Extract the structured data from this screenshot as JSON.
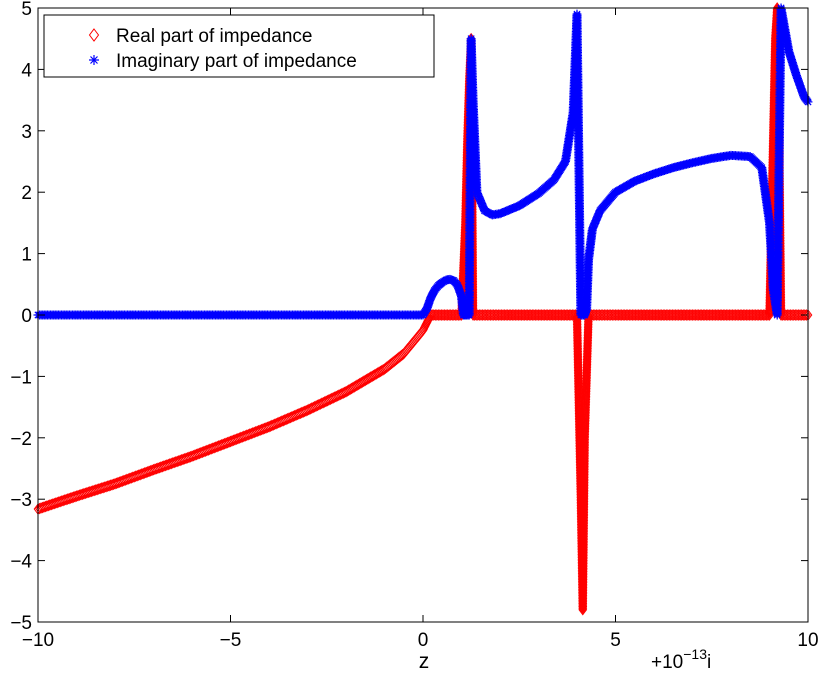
{
  "chart_data": {
    "type": "scatter",
    "xlabel": "z",
    "x_offset_label": {
      "prefix": "+10",
      "exponent": "−13",
      "suffix": "i"
    },
    "xlim": [
      -10,
      10
    ],
    "ylim": [
      -5,
      5
    ],
    "x_ticks": [
      -10,
      -5,
      0,
      5,
      10
    ],
    "x_tick_labels": [
      "−10",
      "−5",
      "0",
      "5",
      "10"
    ],
    "y_ticks": [
      -5,
      -4,
      -3,
      -2,
      -1,
      0,
      1,
      2,
      3,
      4,
      5
    ],
    "y_tick_labels": [
      "−5",
      "−4",
      "−3",
      "−2",
      "−1",
      "0",
      "1",
      "2",
      "3",
      "4",
      "5"
    ],
    "grid": false,
    "legend_position": "top-left",
    "series": [
      {
        "name": "Real part of impedance",
        "marker": "diamond",
        "color": "#ff0000",
        "x": [
          -10,
          -9,
          -8,
          -7,
          -6,
          -5,
          -4,
          -3,
          -2,
          -1,
          -0.5,
          0,
          0.2,
          0.4,
          0.8,
          1.0,
          1.1,
          1.15,
          1.2,
          1.25,
          1.3,
          2,
          3,
          4,
          4.05,
          4.1,
          4.15,
          4.2,
          4.3,
          5,
          6,
          7,
          8,
          9,
          9.05,
          9.1,
          9.15,
          9.2,
          9.25,
          9.3,
          10
        ],
        "y": [
          -3.16,
          -2.95,
          -2.75,
          -2.52,
          -2.3,
          -2.06,
          -1.82,
          -1.55,
          -1.25,
          -0.88,
          -0.63,
          -0.25,
          0,
          0,
          0,
          0,
          1.5,
          2.8,
          3.8,
          4.5,
          0,
          0,
          0,
          0,
          -1.5,
          -3.0,
          -4.8,
          -2.0,
          0,
          0,
          0,
          0,
          0,
          0,
          1.5,
          3.0,
          4.5,
          5.0,
          3.0,
          0,
          0
        ]
      },
      {
        "name": "Imaginary part of impedance",
        "marker": "asterisk",
        "color": "#0000ff",
        "x": [
          -10,
          -8,
          -6,
          -4,
          -2,
          0,
          0.1,
          0.2,
          0.3,
          0.4,
          0.5,
          0.6,
          0.7,
          0.8,
          0.9,
          1.0,
          1.05,
          1.1,
          1.2,
          1.25,
          1.3,
          1.4,
          1.6,
          1.8,
          2.0,
          2.5,
          3.0,
          3.4,
          3.7,
          3.9,
          4.0,
          4.1,
          4.2,
          4.25,
          4.3,
          4.4,
          4.6,
          5.0,
          5.5,
          6.0,
          6.5,
          7.0,
          7.5,
          8.0,
          8.5,
          8.8,
          9.0,
          9.1,
          9.2,
          9.3,
          9.5,
          9.7,
          9.9,
          10
        ],
        "y": [
          0,
          0,
          0,
          0,
          0,
          0,
          0.1,
          0.28,
          0.4,
          0.48,
          0.53,
          0.57,
          0.58,
          0.56,
          0.48,
          0.3,
          0,
          0,
          0,
          4.5,
          3.5,
          2.0,
          1.7,
          1.63,
          1.65,
          1.78,
          1.98,
          2.2,
          2.5,
          3.3,
          4.9,
          0,
          0,
          0.1,
          0.9,
          1.4,
          1.7,
          2.0,
          2.18,
          2.3,
          2.4,
          2.48,
          2.55,
          2.6,
          2.58,
          2.4,
          1.5,
          0.4,
          0,
          5.0,
          4.3,
          3.9,
          3.55,
          3.47
        ]
      }
    ]
  }
}
